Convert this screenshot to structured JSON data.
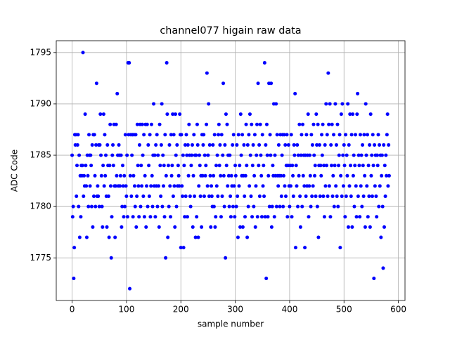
{
  "chart_data": {
    "type": "scatter",
    "title": "channel077 higain raw data",
    "x_label": "sample number",
    "y_label": "ADC Code",
    "color": "#0000ff",
    "grid": true,
    "xlim": [
      -29.15,
      612.15
    ],
    "xticks": [
      0,
      100,
      200,
      300,
      400,
      500,
      600
    ],
    "ylim": [
      1770.85,
      1796.15
    ],
    "yticks": [
      1775,
      1780,
      1785,
      1790,
      1795
    ],
    "x": [
      0,
      1,
      2,
      3,
      4,
      5,
      6,
      7,
      8,
      9,
      10,
      11,
      12,
      13,
      14,
      15,
      16,
      17,
      18,
      19,
      20,
      21,
      22,
      23,
      24,
      25,
      26,
      27,
      28,
      29,
      30,
      31,
      32,
      33,
      34,
      35,
      36,
      37,
      38,
      39,
      40,
      41,
      42,
      43,
      44,
      45,
      46,
      47,
      48,
      49,
      50,
      51,
      52,
      53,
      54,
      55,
      56,
      57,
      58,
      59,
      60,
      61,
      62,
      63,
      64,
      65,
      66,
      67,
      68,
      69,
      70,
      71,
      72,
      73,
      74,
      75,
      76,
      77,
      78,
      79,
      80,
      81,
      82,
      83,
      84,
      85,
      86,
      87,
      88,
      89,
      90,
      91,
      92,
      93,
      94,
      95,
      96,
      97,
      98,
      99,
      100,
      101,
      102,
      103,
      104,
      105,
      106,
      107,
      108,
      109,
      110,
      111,
      112,
      113,
      114,
      115,
      116,
      117,
      118,
      119,
      120,
      121,
      122,
      123,
      124,
      125,
      126,
      127,
      128,
      129,
      130,
      131,
      132,
      133,
      134,
      135,
      136,
      137,
      138,
      139,
      140,
      141,
      142,
      143,
      144,
      145,
      146,
      147,
      148,
      149,
      150,
      151,
      152,
      153,
      154,
      155,
      156,
      157,
      158,
      159,
      160,
      161,
      162,
      163,
      164,
      165,
      166,
      167,
      168,
      169,
      170,
      171,
      172,
      173,
      174,
      175,
      176,
      177,
      178,
      179,
      180,
      181,
      182,
      183,
      184,
      185,
      186,
      187,
      188,
      189,
      190,
      191,
      192,
      193,
      194,
      195,
      196,
      197,
      198,
      199,
      200,
      201,
      202,
      203,
      204,
      205,
      206,
      207,
      208,
      209,
      210,
      211,
      212,
      213,
      214,
      215,
      216,
      217,
      218,
      219,
      220,
      221,
      222,
      223,
      224,
      225,
      226,
      227,
      228,
      229,
      230,
      231,
      232,
      233,
      234,
      235,
      236,
      237,
      238,
      239,
      240,
      241,
      242,
      243,
      244,
      245,
      246,
      247,
      248,
      249,
      250,
      251,
      252,
      253,
      254,
      255,
      256,
      257,
      258,
      259,
      260,
      261,
      262,
      263,
      264,
      265,
      266,
      267,
      268,
      269,
      270,
      271,
      272,
      273,
      274,
      275,
      276,
      277,
      278,
      279,
      280,
      281,
      282,
      283,
      284,
      285,
      286,
      287,
      288,
      289,
      290,
      291,
      292,
      293,
      294,
      295,
      296,
      297,
      298,
      299,
      300,
      301,
      302,
      303,
      304,
      305,
      306,
      307,
      308,
      309,
      310,
      311,
      312,
      313,
      314,
      315,
      316,
      317,
      318,
      319,
      320,
      321,
      322,
      323,
      324,
      325,
      326,
      327,
      328,
      329,
      330,
      331,
      332,
      333,
      334,
      335,
      336,
      337,
      338,
      339,
      340,
      341,
      342,
      343,
      344,
      345,
      346,
      347,
      348,
      349,
      350,
      351,
      352,
      353,
      354,
      355,
      356,
      357,
      358,
      359,
      360,
      361,
      362,
      363,
      364,
      365,
      366,
      367,
      368,
      369,
      370,
      371,
      372,
      373,
      374,
      375,
      376,
      377,
      378,
      379,
      380,
      381,
      382,
      383,
      384,
      385,
      386,
      387,
      388,
      389,
      390,
      391,
      392,
      393,
      394,
      395,
      396,
      397,
      398,
      399,
      400,
      401,
      402,
      403,
      404,
      405,
      406,
      407,
      408,
      409,
      410,
      411,
      412,
      413,
      414,
      415,
      416,
      417,
      418,
      419,
      420,
      421,
      422,
      423,
      424,
      425,
      426,
      427,
      428,
      429,
      430,
      431,
      432,
      433,
      434,
      435,
      436,
      437,
      438,
      439,
      440,
      441,
      442,
      443,
      444,
      445,
      446,
      447,
      448,
      449,
      450,
      451,
      452,
      453,
      454,
      455,
      456,
      457,
      458,
      459,
      460,
      461,
      462,
      463,
      464,
      465,
      466,
      467,
      468,
      469,
      470,
      471,
      472,
      473,
      474,
      475,
      476,
      477,
      478,
      479,
      480,
      481,
      482,
      483,
      484,
      485,
      486,
      487,
      488,
      489,
      490,
      491,
      492,
      493,
      494,
      495,
      496,
      497,
      498,
      499,
      500,
      501,
      502,
      503,
      504,
      505,
      506,
      507,
      508,
      509,
      510,
      511,
      512,
      513,
      514,
      515,
      516,
      517,
      518,
      519,
      520,
      521,
      522,
      523,
      524,
      525,
      526,
      527,
      528,
      529,
      530,
      531,
      532,
      533,
      534,
      535,
      536,
      537,
      538,
      539,
      540,
      541,
      542,
      543,
      544,
      545,
      546,
      547,
      548,
      549,
      550,
      551,
      552,
      553,
      554,
      555,
      556,
      557,
      558,
      559,
      560,
      561,
      562,
      563,
      564,
      565,
      566,
      567,
      568,
      569,
      570,
      571,
      572,
      573,
      574,
      575,
      576,
      577,
      578,
      579,
      580,
      581,
      582,
      583
    ],
    "values": [
      1785,
      1779,
      1780,
      1773,
      1776,
      1787,
      1786,
      1787,
      1781,
      1784,
      1786,
      1787,
      1780,
      1785,
      1777,
      1783,
      1779,
      1784,
      1783,
      1784,
      1795,
      1781,
      1783,
      1782,
      1789,
      1784,
      1782,
      1777,
      1785,
      1783,
      1780,
      1787,
      1785,
      1782,
      1785,
      1784,
      1780,
      1786,
      1778,
      1787,
      1781,
      1787,
      1783,
      1780,
      1786,
      1792,
      1781,
      1782,
      1781,
      1786,
      1780,
      1786,
      1789,
      1785,
      1783,
      1780,
      1778,
      1784,
      1789,
      1782,
      1787,
      1783,
      1785,
      1781,
      1778,
      1786,
      1784,
      1781,
      1777,
      1784,
      1788,
      1782,
      1775,
      1779,
      1785,
      1786,
      1784,
      1788,
      1782,
      1777,
      1782,
      1788,
      1783,
      1791,
      1785,
      1782,
      1786,
      1785,
      1782,
      1783,
      1785,
      1778,
      1780,
      1784,
      1782,
      1779,
      1783,
      1780,
      1787,
      1782,
      1781,
      1785,
      1779,
      1794,
      1787,
      1794,
      1772,
      1783,
      1787,
      1781,
      1785,
      1787,
      1779,
      1783,
      1787,
      1782,
      1780,
      1787,
      1778,
      1781,
      1788,
      1784,
      1782,
      1779,
      1786,
      1788,
      1780,
      1784,
      1782,
      1788,
      1785,
      1781,
      1787,
      1779,
      1783,
      1788,
      1778,
      1782,
      1788,
      1780,
      1786,
      1784,
      1781,
      1787,
      1779,
      1782,
      1788,
      1783,
      1780,
      1785,
      1790,
      1782,
      1785,
      1779,
      1786,
      1782,
      1787,
      1780,
      1785,
      1782,
      1778,
      1788,
      1784,
      1781,
      1786,
      1790,
      1780,
      1785,
      1782,
      1784,
      1779,
      1787,
      1775,
      1783,
      1794,
      1789,
      1777,
      1784,
      1780,
      1786,
      1782,
      1779,
      1787,
      1783,
      1784,
      1789,
      1781,
      1787,
      1782,
      1778,
      1789,
      1785,
      1780,
      1786,
      1782,
      1784,
      1783,
      1782,
      1789,
      1787,
      1776,
      1787,
      1782,
      1781,
      1785,
      1776,
      1784,
      1779,
      1786,
      1781,
      1787,
      1785,
      1779,
      1786,
      1783,
      1788,
      1785,
      1781,
      1780,
      1784,
      1785,
      1786,
      1778,
      1783,
      1787,
      1781,
      1785,
      1777,
      1785,
      1779,
      1788,
      1786,
      1777,
      1782,
      1785,
      1784,
      1781,
      1783,
      1778,
      1787,
      1783,
      1786,
      1787,
      1781,
      1785,
      1783,
      1784,
      1788,
      1793,
      1782,
      1785,
      1790,
      1781,
      1786,
      1783,
      1778,
      1782,
      1781,
      1780,
      1786,
      1783,
      1780,
      1787,
      1778,
      1779,
      1784,
      1782,
      1785,
      1781,
      1787,
      1788,
      1784,
      1786,
      1783,
      1779,
      1787,
      1781,
      1785,
      1792,
      1783,
      1780,
      1786,
      1775,
      1789,
      1784,
      1788,
      1782,
      1785,
      1783,
      1780,
      1785,
      1781,
      1779,
      1783,
      1782,
      1786,
      1780,
      1787,
      1782,
      1779,
      1784,
      1783,
      1780,
      1786,
      1781,
      1777,
      1787,
      1782,
      1784,
      1778,
      1789,
      1785,
      1783,
      1787,
      1778,
      1783,
      1786,
      1781,
      1779,
      1783,
      1788,
      1784,
      1777,
      1786,
      1780,
      1787,
      1782,
      1789,
      1785,
      1781,
      1788,
      1779,
      1784,
      1786,
      1780,
      1783,
      1787,
      1778,
      1782,
      1785,
      1788,
      1779,
      1792,
      1784,
      1786,
      1781,
      1788,
      1785,
      1783,
      1779,
      1787,
      1782,
      1784,
      1781,
      1794,
      1779,
      1786,
      1773,
      1788,
      1785,
      1779,
      1783,
      1792,
      1780,
      1787,
      1785,
      1792,
      1778,
      1780,
      1784,
      1783,
      1790,
      1779,
      1785,
      1783,
      1790,
      1780,
      1787,
      1783,
      1782,
      1786,
      1783,
      1780,
      1787,
      1783,
      1781,
      1785,
      1787,
      1780,
      1783,
      1787,
      1782,
      1786,
      1781,
      1784,
      1787,
      1779,
      1784,
      1786,
      1782,
      1780,
      1784,
      1782,
      1787,
      1779,
      1784,
      1783,
      1781,
      1786,
      1785,
      1791,
      1776,
      1784,
      1782,
      1786,
      1780,
      1785,
      1783,
      1788,
      1781,
      1778,
      1785,
      1787,
      1780,
      1788,
      1783,
      1785,
      1782,
      1776,
      1785,
      1781,
      1787,
      1782,
      1785,
      1789,
      1779,
      1782,
      1785,
      1783,
      1780,
      1787,
      1781,
      1786,
      1782,
      1788,
      1785,
      1783,
      1784,
      1781,
      1789,
      1786,
      1780,
      1788,
      1777,
      1784,
      1786,
      1781,
      1784,
      1783,
      1787,
      1785,
      1788,
      1781,
      1784,
      1779,
      1786,
      1782,
      1790,
      1784,
      1787,
      1781,
      1793,
      1788,
      1782,
      1790,
      1779,
      1786,
      1784,
      1788,
      1781,
      1783,
      1787,
      1780,
      1784,
      1790,
      1782,
      1786,
      1781,
      1788,
      1780,
      1784,
      1785,
      1787,
      1776,
      1783,
      1789,
      1781,
      1790,
      1785,
      1782,
      1786,
      1784,
      1779,
      1787,
      1781,
      1785,
      1783,
      1790,
      1778,
      1786,
      1782,
      1789,
      1784,
      1781,
      1787,
      1778,
      1789,
      1783,
      1785,
      1780,
      1784,
      1787,
      1782,
      1779,
      1789,
      1791,
      1781,
      1785,
      1784,
      1779,
      1787,
      1782,
      1785,
      1780,
      1786,
      1784,
      1781,
      1787,
      1783,
      1778,
      1790,
      1785,
      1782,
      1787,
      1779,
      1784,
      1781,
      1786,
      1778,
      1789,
      1783,
      1785,
      1781,
      1787,
      1784,
      1773,
      1786,
      1782,
      1785,
      1781,
      1779,
      1785,
      1784,
      1787,
      1780,
      1786,
      1782,
      1785,
      1777,
      1783,
      1785,
      1780,
      1774,
      1786,
      1778,
      1784,
      1781,
      1785,
      1783,
      1787,
      1789,
      1782,
      1786,
      1783
    ]
  }
}
